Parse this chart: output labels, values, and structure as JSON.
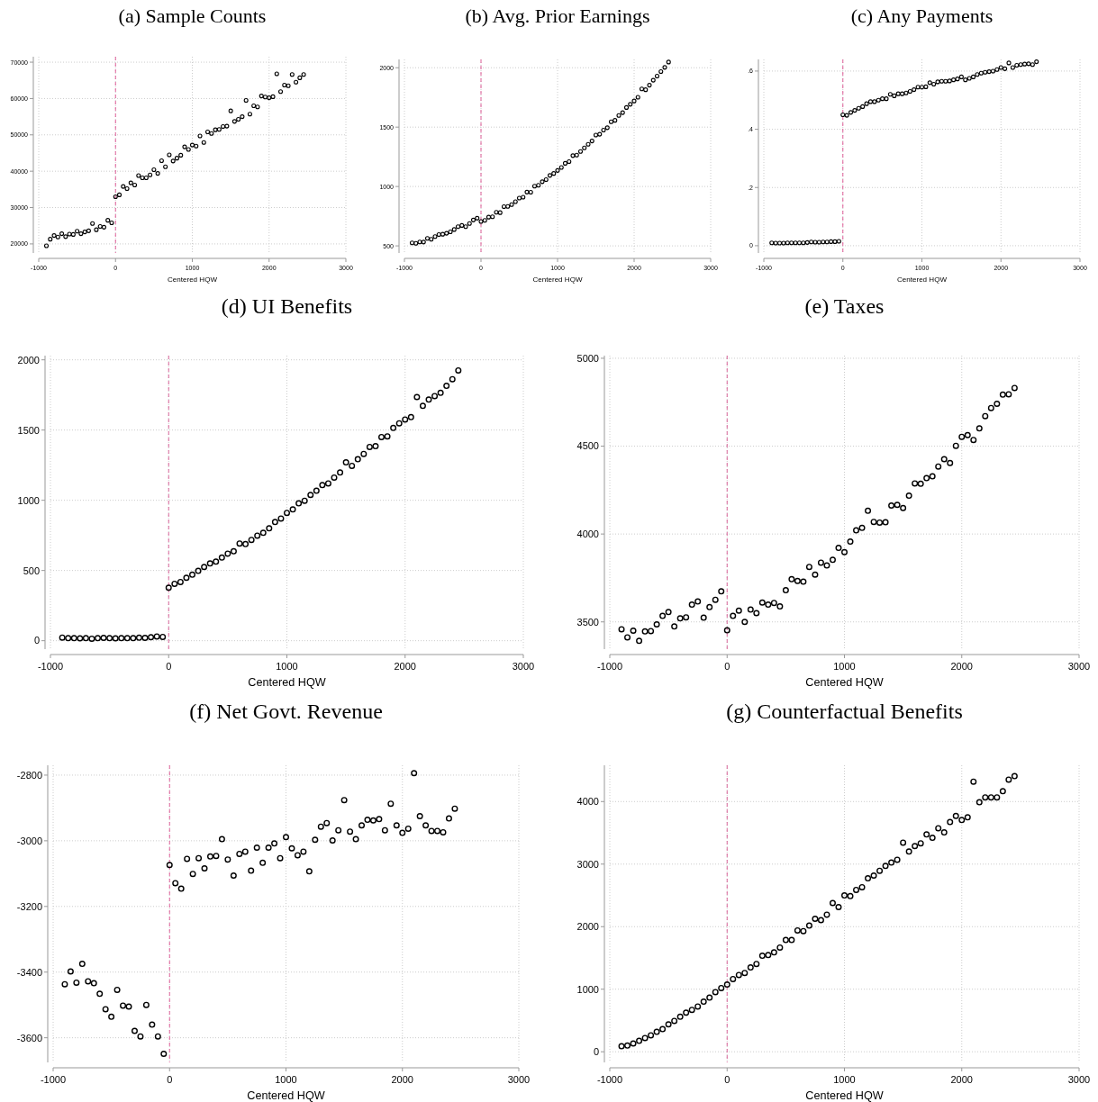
{
  "chart_data": [
    {
      "type": "scatter",
      "title": "(a) Sample Counts",
      "xlabel": "Centered HQW",
      "marker": "circle",
      "grid": true,
      "xlim": [
        -1000,
        3000
      ],
      "xticks": [
        -1000,
        0,
        1000,
        2000,
        3000
      ],
      "ylim": [
        17500,
        71500
      ],
      "yticks": [
        20000,
        30000,
        40000,
        50000,
        60000,
        70000
      ],
      "ref_lines": [
        {
          "axis": "x",
          "value": 0,
          "color": "#e0609a",
          "line_style": "dashed"
        }
      ],
      "x": [
        -900,
        -850,
        -800,
        -750,
        -700,
        -650,
        -600,
        -550,
        -500,
        -450,
        -400,
        -350,
        -300,
        -250,
        -200,
        -150,
        -100,
        -50,
        0,
        50,
        100,
        150,
        200,
        250,
        300,
        350,
        400,
        450,
        500,
        550,
        600,
        650,
        700,
        750,
        800,
        850,
        900,
        950,
        1000,
        1050,
        1100,
        1150,
        1200,
        1250,
        1300,
        1350,
        1400,
        1450,
        1500,
        1550,
        1600,
        1650,
        1700,
        1750,
        1800,
        1850,
        1900,
        1950,
        2000,
        2050,
        2100,
        2150,
        2200,
        2250,
        2300,
        2350,
        2400,
        2450
      ],
      "series": [
        {
          "color": "#000000",
          "values": [
            19500,
            21300,
            22300,
            21900,
            22800,
            22000,
            22700,
            22600,
            23500,
            22800,
            23300,
            23600,
            25600,
            23900,
            24800,
            24600,
            26500,
            25800,
            33000,
            33500,
            35800,
            35200,
            36800,
            36200,
            38800,
            38200,
            38200,
            39000,
            40400,
            39400,
            42900,
            41200,
            44500,
            42800,
            43600,
            44400,
            46700,
            46000,
            47200,
            46900,
            49700,
            47900,
            50800,
            50400,
            51400,
            51500,
            52300,
            52400,
            56600,
            53700,
            54300,
            55000,
            59500,
            55700,
            58000,
            57700,
            60700,
            60400,
            60200,
            60500,
            66800,
            61900,
            63700,
            63500,
            66600,
            64500,
            65700,
            66600
          ]
        }
      ]
    },
    {
      "type": "scatter",
      "title": "(b) Avg. Prior Earnings",
      "xlabel": "Centered HQW",
      "marker": "circle",
      "grid": true,
      "xlim": [
        -1000,
        3000
      ],
      "xticks": [
        -1000,
        0,
        1000,
        2000,
        3000
      ],
      "ylim": [
        440,
        2070
      ],
      "yticks": [
        500,
        1000,
        1500,
        2000
      ],
      "ref_lines": [
        {
          "axis": "x",
          "value": 0,
          "color": "#e0609a",
          "line_style": "dashed"
        }
      ],
      "x": [
        -900,
        -850,
        -800,
        -750,
        -700,
        -650,
        -600,
        -550,
        -500,
        -450,
        -400,
        -350,
        -300,
        -250,
        -200,
        -150,
        -100,
        -50,
        0,
        50,
        100,
        150,
        200,
        250,
        300,
        350,
        400,
        450,
        500,
        550,
        600,
        650,
        700,
        750,
        800,
        850,
        900,
        950,
        1000,
        1050,
        1100,
        1150,
        1200,
        1250,
        1300,
        1350,
        1400,
        1450,
        1500,
        1550,
        1600,
        1650,
        1700,
        1750,
        1800,
        1850,
        1900,
        1950,
        2000,
        2050,
        2100,
        2150,
        2200,
        2250,
        2300,
        2350,
        2400,
        2450
      ],
      "series": [
        {
          "color": "#000000",
          "values": [
            525,
            522,
            533,
            532,
            563,
            556,
            578,
            595,
            598,
            606,
            618,
            638,
            662,
            672,
            662,
            688,
            718,
            733,
            705,
            715,
            742,
            745,
            783,
            780,
            830,
            832,
            848,
            872,
            903,
            910,
            953,
            952,
            1003,
            1010,
            1040,
            1058,
            1093,
            1110,
            1135,
            1160,
            1195,
            1210,
            1260,
            1265,
            1295,
            1325,
            1355,
            1383,
            1433,
            1440,
            1475,
            1495,
            1545,
            1557,
            1598,
            1622,
            1665,
            1692,
            1720,
            1752,
            1822,
            1815,
            1853,
            1895,
            1930,
            1968,
            2003,
            2048
          ]
        }
      ]
    },
    {
      "type": "scatter",
      "title": "(c) Any Payments",
      "xlabel": "Centered HQW",
      "marker": "circle",
      "grid": true,
      "xlim": [
        -1000,
        3000
      ],
      "xticks": [
        -1000,
        0,
        1000,
        2000,
        3000
      ],
      "ylim": [
        -0.025,
        0.64
      ],
      "yticks": [
        0,
        {
          "value": 0.2,
          "label": ".2"
        },
        {
          "value": 0.4,
          "label": ".4"
        },
        {
          "value": 0.6,
          "label": ".6"
        }
      ],
      "ref_lines": [
        {
          "axis": "x",
          "value": 0,
          "color": "#e0609a",
          "line_style": "dashed"
        }
      ],
      "x": [
        -900,
        -850,
        -800,
        -750,
        -700,
        -650,
        -600,
        -550,
        -500,
        -450,
        -400,
        -350,
        -300,
        -250,
        -200,
        -150,
        -100,
        -50,
        0,
        50,
        100,
        150,
        200,
        250,
        300,
        350,
        400,
        450,
        500,
        550,
        600,
        650,
        700,
        750,
        800,
        850,
        900,
        950,
        1000,
        1050,
        1100,
        1150,
        1200,
        1250,
        1300,
        1350,
        1400,
        1450,
        1500,
        1550,
        1600,
        1650,
        1700,
        1750,
        1800,
        1850,
        1900,
        1950,
        2000,
        2050,
        2100,
        2150,
        2200,
        2250,
        2300,
        2350,
        2400,
        2450
      ],
      "series": [
        {
          "color": "#000000",
          "values": [
            0.01,
            0.009,
            0.009,
            0.009,
            0.01,
            0.01,
            0.01,
            0.01,
            0.01,
            0.011,
            0.013,
            0.012,
            0.012,
            0.013,
            0.013,
            0.014,
            0.014,
            0.015,
            0.45,
            0.448,
            0.458,
            0.465,
            0.472,
            0.478,
            0.488,
            0.495,
            0.495,
            0.5,
            0.505,
            0.505,
            0.52,
            0.515,
            0.522,
            0.522,
            0.525,
            0.53,
            0.536,
            0.545,
            0.545,
            0.546,
            0.56,
            0.555,
            0.563,
            0.565,
            0.565,
            0.566,
            0.57,
            0.573,
            0.58,
            0.57,
            0.575,
            0.58,
            0.588,
            0.593,
            0.596,
            0.598,
            0.6,
            0.605,
            0.612,
            0.608,
            0.628,
            0.612,
            0.62,
            0.622,
            0.624,
            0.625,
            0.622,
            0.632
          ]
        }
      ]
    },
    {
      "type": "scatter",
      "title": "(d) UI Benefits",
      "xlabel": "Centered HQW",
      "marker": "circle",
      "grid": true,
      "xlim": [
        -1000,
        3000
      ],
      "xticks": [
        -1000,
        0,
        1000,
        2000,
        3000
      ],
      "ylim": [
        -60,
        2030
      ],
      "yticks": [
        0,
        500,
        1000,
        1500,
        2000
      ],
      "ref_lines": [
        {
          "axis": "x",
          "value": 0,
          "color": "#d9669b",
          "line_style": "dashed"
        }
      ],
      "x": [
        -900,
        -850,
        -800,
        -750,
        -700,
        -650,
        -600,
        -550,
        -500,
        -450,
        -400,
        -350,
        -300,
        -250,
        -200,
        -150,
        -100,
        -50,
        0,
        50,
        100,
        150,
        200,
        250,
        300,
        350,
        400,
        450,
        500,
        550,
        600,
        650,
        700,
        750,
        800,
        850,
        900,
        950,
        1000,
        1050,
        1100,
        1150,
        1200,
        1250,
        1300,
        1350,
        1400,
        1450,
        1500,
        1550,
        1600,
        1650,
        1700,
        1750,
        1800,
        1850,
        1900,
        1950,
        2000,
        2050,
        2100,
        2150,
        2200,
        2250,
        2300,
        2350,
        2400,
        2450
      ],
      "series": [
        {
          "color": "#000000",
          "values": [
            22,
            18,
            18,
            17,
            18,
            14,
            18,
            20,
            18,
            17,
            18,
            18,
            18,
            21,
            20,
            25,
            30,
            27,
            377,
            405,
            418,
            448,
            470,
            497,
            525,
            550,
            563,
            592,
            620,
            637,
            692,
            688,
            718,
            748,
            768,
            800,
            845,
            870,
            910,
            935,
            978,
            997,
            1038,
            1068,
            1108,
            1120,
            1162,
            1198,
            1270,
            1245,
            1292,
            1330,
            1380,
            1385,
            1450,
            1455,
            1515,
            1548,
            1575,
            1592,
            1735,
            1672,
            1717,
            1742,
            1765,
            1815,
            1862,
            1925
          ]
        }
      ]
    },
    {
      "type": "scatter",
      "title": "(e) Taxes",
      "xlabel": "Centered HQW",
      "marker": "circle",
      "grid": true,
      "xlim": [
        -1000,
        3000
      ],
      "xticks": [
        -1000,
        0,
        1000,
        2000,
        3000
      ],
      "ylim": [
        3345,
        5015
      ],
      "yticks": [
        3500,
        4000,
        4500,
        5000
      ],
      "ref_lines": [
        {
          "axis": "x",
          "value": 0,
          "color": "#d9669b",
          "line_style": "dashed"
        }
      ],
      "x": [
        -900,
        -850,
        -800,
        -750,
        -700,
        -650,
        -600,
        -550,
        -500,
        -450,
        -400,
        -350,
        -300,
        -250,
        -200,
        -150,
        -100,
        -50,
        0,
        50,
        100,
        150,
        200,
        250,
        300,
        350,
        400,
        450,
        500,
        550,
        600,
        650,
        700,
        750,
        800,
        850,
        900,
        950,
        1000,
        1050,
        1100,
        1150,
        1200,
        1250,
        1300,
        1350,
        1400,
        1450,
        1500,
        1550,
        1600,
        1650,
        1700,
        1750,
        1800,
        1850,
        1900,
        1950,
        2000,
        2050,
        2100,
        2150,
        2200,
        2250,
        2300,
        2350,
        2400,
        2450
      ],
      "series": [
        {
          "color": "#000000",
          "values": [
            3458,
            3412,
            3450,
            3392,
            3446,
            3448,
            3486,
            3534,
            3556,
            3474,
            3520,
            3526,
            3598,
            3616,
            3524,
            3584,
            3626,
            3674,
            3452,
            3534,
            3564,
            3500,
            3570,
            3550,
            3610,
            3598,
            3608,
            3588,
            3680,
            3743,
            3733,
            3729,
            3813,
            3769,
            3837,
            3821,
            3853,
            3921,
            3897,
            3957,
            4021,
            4035,
            4132,
            4069,
            4065,
            4067,
            4162,
            4166,
            4148,
            4218,
            4288,
            4286,
            4318,
            4328,
            4384,
            4426,
            4404,
            4502,
            4553,
            4563,
            4535,
            4601,
            4671,
            4717,
            4741,
            4793,
            4795,
            4831
          ]
        }
      ]
    },
    {
      "type": "scatter",
      "title": "(f) Net Govt. Revenue",
      "xlabel": "Centered HQW",
      "marker": "circle",
      "grid": true,
      "xlim": [
        -1000,
        3000
      ],
      "xticks": [
        -1000,
        0,
        1000,
        2000,
        3000
      ],
      "ylim": [
        -3675,
        -2770
      ],
      "yticks": [
        -3600,
        -3400,
        -3200,
        -3000,
        -2800
      ],
      "ref_lines": [
        {
          "axis": "x",
          "value": 0,
          "color": "#e0609a",
          "line_style": "dashed"
        }
      ],
      "x": [
        -900,
        -850,
        -800,
        -750,
        -700,
        -650,
        -600,
        -550,
        -500,
        -450,
        -400,
        -350,
        -300,
        -250,
        -200,
        -150,
        -100,
        -50,
        0,
        50,
        100,
        150,
        200,
        250,
        300,
        350,
        400,
        450,
        500,
        550,
        600,
        650,
        700,
        750,
        800,
        850,
        900,
        950,
        1000,
        1050,
        1100,
        1150,
        1200,
        1250,
        1300,
        1350,
        1400,
        1450,
        1500,
        1550,
        1600,
        1650,
        1700,
        1750,
        1800,
        1850,
        1900,
        1950,
        2000,
        2050,
        2100,
        2150,
        2200,
        2250,
        2300,
        2350,
        2400,
        2450
      ],
      "series": [
        {
          "color": "#000000",
          "values": [
            -3437,
            -3398,
            -3432,
            -3375,
            -3428,
            -3434,
            -3466,
            -3513,
            -3536,
            -3454,
            -3502,
            -3505,
            -3579,
            -3596,
            -3500,
            -3560,
            -3596,
            -3649,
            -3074,
            -3129,
            -3146,
            -3055,
            -3101,
            -3053,
            -3084,
            -3048,
            -3046,
            -2995,
            -3057,
            -3106,
            -3040,
            -3033,
            -3091,
            -3021,
            -3067,
            -3021,
            -3008,
            -3053,
            -2989,
            -3023,
            -3044,
            -3033,
            -3093,
            -2997,
            -2957,
            -2946,
            -2999,
            -2968,
            -2876,
            -2972,
            -2995,
            -2953,
            -2936,
            -2938,
            -2934,
            -2968,
            -2887,
            -2953,
            -2976,
            -2963,
            -2794,
            -2925,
            -2953,
            -2970,
            -2970,
            -2974,
            -2932,
            -2902
          ]
        }
      ]
    },
    {
      "type": "scatter",
      "title": "(g) Counterfactual Benefits",
      "xlabel": "Centered HQW",
      "marker": "circle",
      "grid": true,
      "xlim": [
        -1000,
        3000
      ],
      "xticks": [
        -1000,
        0,
        1000,
        2000,
        3000
      ],
      "ylim": [
        -170,
        4580
      ],
      "yticks": [
        0,
        1000,
        2000,
        3000,
        4000
      ],
      "ref_lines": [
        {
          "axis": "x",
          "value": 0,
          "color": "#d9669b",
          "line_style": "dashed"
        }
      ],
      "x": [
        -900,
        -850,
        -800,
        -750,
        -700,
        -650,
        -600,
        -550,
        -500,
        -450,
        -400,
        -350,
        -300,
        -250,
        -200,
        -150,
        -100,
        -50,
        0,
        50,
        100,
        150,
        200,
        250,
        300,
        350,
        400,
        450,
        500,
        550,
        600,
        650,
        700,
        750,
        800,
        850,
        900,
        950,
        1000,
        1050,
        1100,
        1150,
        1200,
        1250,
        1300,
        1350,
        1400,
        1450,
        1500,
        1550,
        1600,
        1650,
        1700,
        1750,
        1800,
        1850,
        1900,
        1950,
        2000,
        2050,
        2100,
        2150,
        2200,
        2250,
        2300,
        2350,
        2400,
        2450
      ],
      "series": [
        {
          "color": "#000000",
          "values": [
            88,
            99,
            132,
            175,
            219,
            263,
            318,
            362,
            438,
            493,
            559,
            625,
            669,
            723,
            800,
            866,
            954,
            1019,
            1074,
            1162,
            1228,
            1260,
            1348,
            1403,
            1534,
            1545,
            1589,
            1666,
            1786,
            1786,
            1940,
            1929,
            2017,
            2126,
            2104,
            2192,
            2378,
            2313,
            2499,
            2488,
            2587,
            2630,
            2773,
            2817,
            2893,
            2970,
            3025,
            3069,
            3343,
            3200,
            3288,
            3332,
            3474,
            3420,
            3573,
            3507,
            3672,
            3770,
            3704,
            3748,
            4318,
            3989,
            4066,
            4066,
            4066,
            4165,
            4351,
            4406
          ]
        }
      ]
    }
  ]
}
